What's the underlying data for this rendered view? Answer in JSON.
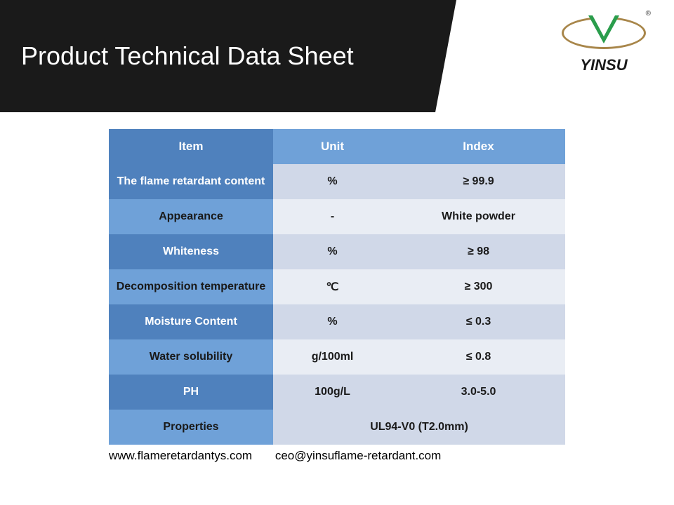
{
  "header": {
    "title": "Product Technical Data Sheet",
    "logo_text": "YINSU",
    "logo_reg": "®"
  },
  "watermark": "YINSU",
  "table": {
    "columns": [
      "Item",
      "Unit",
      "Index"
    ],
    "column_widths_pct": [
      36,
      26,
      38
    ],
    "header_colors": [
      "#4f81bd",
      "#6fa1d8",
      "#6fa1d8"
    ],
    "row_alt_colors": {
      "dark_item": "#4f81bd",
      "dark_cell": "#d0d8e8",
      "light_item": "#6fa1d8",
      "light_cell": "#e9edf4"
    },
    "rows": [
      {
        "item": "The flame retardant content",
        "unit": "%",
        "index": "≥ 99.9",
        "multiline": true,
        "shade": "dark"
      },
      {
        "item": "Appearance",
        "unit": "-",
        "index": "White powder",
        "shade": "light"
      },
      {
        "item": "Whiteness",
        "unit": "%",
        "index": "≥ 98",
        "shade": "dark"
      },
      {
        "item": "Decomposition temperature",
        "unit": "℃",
        "index": "≥ 300",
        "multiline": true,
        "shade": "light"
      },
      {
        "item": "Moisture Content",
        "unit": "%",
        "index": "≤ 0.3",
        "shade": "dark"
      },
      {
        "item": "Water solubility",
        "unit": "g/100ml",
        "index": "≤ 0.8",
        "shade": "light"
      },
      {
        "item": "PH",
        "unit": "100g/L",
        "index": "3.0-5.0",
        "shade": "dark"
      },
      {
        "item": "Properties",
        "merged_value": "UL94-V0 (T2.0mm)",
        "shade": "light"
      }
    ]
  },
  "footer": {
    "website": "www.flameretardantys.com",
    "email": "ceo@yinsuflame-retardant.com"
  }
}
